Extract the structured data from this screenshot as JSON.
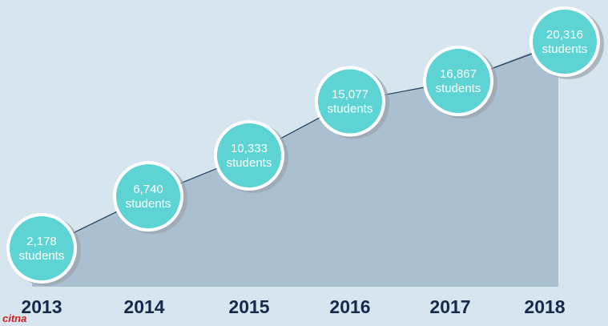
{
  "chart_data": {
    "type": "area",
    "categories": [
      "2013",
      "2014",
      "2015",
      "2016",
      "2017",
      "2018"
    ],
    "values": [
      2178,
      6740,
      10333,
      15077,
      16867,
      20316
    ],
    "value_labels": [
      "2,178",
      "6,740",
      "10,333",
      "15,077",
      "16,867",
      "20,316"
    ],
    "unit_label": "students",
    "color": "#aabfd0",
    "line_color": "#1f3a5c",
    "marker_color": "#5dd3d3",
    "watermark": "citna"
  }
}
